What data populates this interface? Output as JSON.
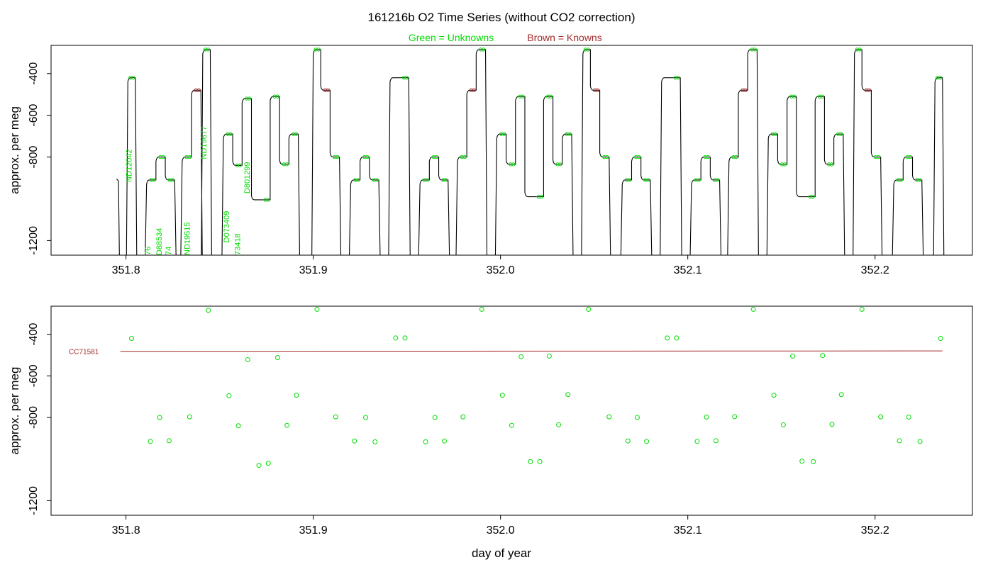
{
  "title": "161216b   O2 Time Series (without CO2 correction)",
  "legend": {
    "unknowns": "Green = Unknowns",
    "knowns": "Brown = Knowns"
  },
  "colors": {
    "unknowns": "#00dd00",
    "knowns": "#a52a2a",
    "trace": "#000000",
    "frame": "#000000"
  },
  "xlabel": "day of year",
  "chart_data": [
    {
      "type": "line",
      "panel": "top",
      "ylabel": "approx. per meg",
      "xlim": [
        351.76,
        352.252
      ],
      "ylim": [
        -1270,
        -265
      ],
      "x_ticks": [
        "351.8",
        "351.9",
        "352.0",
        "352.1",
        "352.2"
      ],
      "y_ticks": [
        "-400",
        "-600",
        "-800",
        "-1200"
      ],
      "trace_levels": [
        {
          "x0": 351.801,
          "x1": 351.805,
          "y": -420,
          "kind": "unknown"
        },
        {
          "x0": 351.811,
          "x1": 351.816,
          "y": -910,
          "kind": "unknown"
        },
        {
          "x0": 351.816,
          "x1": 351.821,
          "y": -800,
          "kind": "unknown"
        },
        {
          "x0": 351.821,
          "x1": 351.826,
          "y": -910,
          "kind": "unknown"
        },
        {
          "x0": 351.83,
          "x1": 351.835,
          "y": -800,
          "kind": "unknown"
        },
        {
          "x0": 351.835,
          "x1": 351.84,
          "y": -480,
          "kind": "known"
        },
        {
          "x0": 351.841,
          "x1": 351.845,
          "y": -285,
          "kind": "unknown"
        },
        {
          "x0": 351.852,
          "x1": 351.857,
          "y": -690,
          "kind": "unknown"
        },
        {
          "x0": 351.857,
          "x1": 351.862,
          "y": -840,
          "kind": "unknown"
        },
        {
          "x0": 351.862,
          "x1": 351.867,
          "y": -520,
          "kind": "unknown"
        },
        {
          "x0": 351.867,
          "x1": 351.877,
          "y": -1005,
          "kind": "unknown"
        },
        {
          "x0": 351.877,
          "x1": 351.882,
          "y": -510,
          "kind": "unknown"
        },
        {
          "x0": 351.882,
          "x1": 351.887,
          "y": -835,
          "kind": "unknown"
        },
        {
          "x0": 351.887,
          "x1": 351.892,
          "y": -690,
          "kind": "unknown"
        },
        {
          "x0": 351.9,
          "x1": 351.904,
          "y": -285,
          "kind": "unknown"
        },
        {
          "x0": 351.904,
          "x1": 351.909,
          "y": -480,
          "kind": "known"
        },
        {
          "x0": 351.909,
          "x1": 351.914,
          "y": -800,
          "kind": "unknown"
        },
        {
          "x0": 351.92,
          "x1": 351.925,
          "y": -910,
          "kind": "unknown"
        },
        {
          "x0": 351.925,
          "x1": 351.93,
          "y": -800,
          "kind": "unknown"
        },
        {
          "x0": 351.93,
          "x1": 351.935,
          "y": -910,
          "kind": "unknown"
        },
        {
          "x0": 351.941,
          "x1": 351.951,
          "y": -420,
          "kind": "unknown"
        },
        {
          "x0": 351.957,
          "x1": 351.962,
          "y": -910,
          "kind": "unknown"
        },
        {
          "x0": 351.962,
          "x1": 351.967,
          "y": -800,
          "kind": "unknown"
        },
        {
          "x0": 351.967,
          "x1": 351.972,
          "y": -910,
          "kind": "unknown"
        },
        {
          "x0": 351.977,
          "x1": 351.982,
          "y": -800,
          "kind": "unknown"
        },
        {
          "x0": 351.982,
          "x1": 351.987,
          "y": -480,
          "kind": "known"
        },
        {
          "x0": 351.987,
          "x1": 351.992,
          "y": -285,
          "kind": "unknown"
        },
        {
          "x0": 351.998,
          "x1": 352.003,
          "y": -690,
          "kind": "unknown"
        },
        {
          "x0": 352.003,
          "x1": 352.008,
          "y": -835,
          "kind": "unknown"
        },
        {
          "x0": 352.008,
          "x1": 352.013,
          "y": -510,
          "kind": "unknown"
        },
        {
          "x0": 352.013,
          "x1": 352.023,
          "y": -990,
          "kind": "unknown"
        },
        {
          "x0": 352.023,
          "x1": 352.028,
          "y": -510,
          "kind": "unknown"
        },
        {
          "x0": 352.028,
          "x1": 352.033,
          "y": -835,
          "kind": "unknown"
        },
        {
          "x0": 352.033,
          "x1": 352.038,
          "y": -690,
          "kind": "unknown"
        },
        {
          "x0": 352.044,
          "x1": 352.048,
          "y": -285,
          "kind": "unknown"
        },
        {
          "x0": 352.048,
          "x1": 352.053,
          "y": -480,
          "kind": "known"
        },
        {
          "x0": 352.053,
          "x1": 352.058,
          "y": -800,
          "kind": "unknown"
        },
        {
          "x0": 352.065,
          "x1": 352.07,
          "y": -910,
          "kind": "unknown"
        },
        {
          "x0": 352.07,
          "x1": 352.075,
          "y": -800,
          "kind": "unknown"
        },
        {
          "x0": 352.075,
          "x1": 352.08,
          "y": -910,
          "kind": "unknown"
        },
        {
          "x0": 352.086,
          "x1": 352.096,
          "y": -420,
          "kind": "unknown"
        },
        {
          "x0": 352.102,
          "x1": 352.107,
          "y": -910,
          "kind": "unknown"
        },
        {
          "x0": 352.107,
          "x1": 352.112,
          "y": -800,
          "kind": "unknown"
        },
        {
          "x0": 352.112,
          "x1": 352.117,
          "y": -910,
          "kind": "unknown"
        },
        {
          "x0": 352.122,
          "x1": 352.127,
          "y": -800,
          "kind": "unknown"
        },
        {
          "x0": 352.127,
          "x1": 352.132,
          "y": -480,
          "kind": "known"
        },
        {
          "x0": 352.132,
          "x1": 352.137,
          "y": -285,
          "kind": "unknown"
        },
        {
          "x0": 352.143,
          "x1": 352.148,
          "y": -690,
          "kind": "unknown"
        },
        {
          "x0": 352.148,
          "x1": 352.153,
          "y": -835,
          "kind": "unknown"
        },
        {
          "x0": 352.153,
          "x1": 352.158,
          "y": -510,
          "kind": "unknown"
        },
        {
          "x0": 352.158,
          "x1": 352.168,
          "y": -990,
          "kind": "unknown"
        },
        {
          "x0": 352.168,
          "x1": 352.173,
          "y": -510,
          "kind": "unknown"
        },
        {
          "x0": 352.173,
          "x1": 352.178,
          "y": -835,
          "kind": "unknown"
        },
        {
          "x0": 352.178,
          "x1": 352.183,
          "y": -690,
          "kind": "unknown"
        },
        {
          "x0": 352.189,
          "x1": 352.193,
          "y": -285,
          "kind": "unknown"
        },
        {
          "x0": 352.193,
          "x1": 352.198,
          "y": -480,
          "kind": "known"
        },
        {
          "x0": 352.198,
          "x1": 352.203,
          "y": -800,
          "kind": "unknown"
        },
        {
          "x0": 352.21,
          "x1": 352.215,
          "y": -910,
          "kind": "unknown"
        },
        {
          "x0": 352.215,
          "x1": 352.22,
          "y": -800,
          "kind": "unknown"
        },
        {
          "x0": 352.22,
          "x1": 352.225,
          "y": -910,
          "kind": "unknown"
        },
        {
          "x0": 352.232,
          "x1": 352.236,
          "y": -420,
          "kind": "unknown"
        }
      ],
      "sample_labels": [
        {
          "text": "ND12042",
          "x": 351.803,
          "y": -920
        },
        {
          "text": "ND19677",
          "x": 351.843,
          "y": -810
        },
        {
          "text": "D801299",
          "x": 351.866,
          "y": -975
        },
        {
          "text": "D073409",
          "x": 351.855,
          "y": -1210
        },
        {
          "text": "D88534",
          "x": 351.819,
          "y": -1270
        },
        {
          "text": "ND19515",
          "x": 351.834,
          "y": -1270
        },
        {
          "text": "73418",
          "x": 351.861,
          "y": -1270
        },
        {
          "text": "76",
          "x": 351.813,
          "y": -1270
        },
        {
          "text": "74",
          "x": 351.824,
          "y": -1270
        }
      ]
    },
    {
      "type": "scatter",
      "panel": "bottom",
      "ylabel": "approx. per meg",
      "xlim": [
        351.76,
        352.252
      ],
      "ylim": [
        -1270,
        -265
      ],
      "x_ticks": [
        "351.8",
        "351.9",
        "352.0",
        "352.1",
        "352.2"
      ],
      "y_ticks": [
        "-400",
        "-600",
        "-800",
        "-1200"
      ],
      "points": [
        [
          351.803,
          -420
        ],
        [
          351.813,
          -915
        ],
        [
          351.818,
          -800
        ],
        [
          351.823,
          -912
        ],
        [
          351.834,
          -797
        ],
        [
          351.844,
          -285
        ],
        [
          351.855,
          -695
        ],
        [
          351.86,
          -840
        ],
        [
          351.865,
          -522
        ],
        [
          351.871,
          -1030
        ],
        [
          351.876,
          -1020
        ],
        [
          351.881,
          -512
        ],
        [
          351.886,
          -838
        ],
        [
          351.891,
          -693
        ],
        [
          351.902,
          -280
        ],
        [
          351.912,
          -797
        ],
        [
          351.922,
          -913
        ],
        [
          351.928,
          -800
        ],
        [
          351.933,
          -917
        ],
        [
          351.944,
          -418
        ],
        [
          351.949,
          -418
        ],
        [
          351.96,
          -917
        ],
        [
          351.965,
          -800
        ],
        [
          351.97,
          -913
        ],
        [
          351.98,
          -797
        ],
        [
          351.99,
          -280
        ],
        [
          352.001,
          -693
        ],
        [
          352.006,
          -838
        ],
        [
          352.011,
          -508
        ],
        [
          352.016,
          -1012
        ],
        [
          352.021,
          -1012
        ],
        [
          352.026,
          -505
        ],
        [
          352.031,
          -835
        ],
        [
          352.036,
          -690
        ],
        [
          352.047,
          -280
        ],
        [
          352.058,
          -797
        ],
        [
          352.068,
          -913
        ],
        [
          352.073,
          -800
        ],
        [
          352.078,
          -915
        ],
        [
          352.089,
          -418
        ],
        [
          352.094,
          -418
        ],
        [
          352.105,
          -915
        ],
        [
          352.11,
          -798
        ],
        [
          352.115,
          -912
        ],
        [
          352.125,
          -796
        ],
        [
          352.135,
          -280
        ],
        [
          352.146,
          -693
        ],
        [
          352.151,
          -835
        ],
        [
          352.156,
          -505
        ],
        [
          352.161,
          -1010
        ],
        [
          352.167,
          -1012
        ],
        [
          352.172,
          -502
        ],
        [
          352.177,
          -833
        ],
        [
          352.182,
          -690
        ],
        [
          352.193,
          -280
        ],
        [
          352.203,
          -797
        ],
        [
          352.213,
          -912
        ],
        [
          352.218,
          -798
        ],
        [
          352.224,
          -915
        ],
        [
          352.235,
          -420
        ]
      ],
      "reference_line": {
        "label": "CC71581",
        "x0": 351.797,
        "x1": 352.236,
        "y0": -482,
        "y1": -480
      }
    }
  ]
}
